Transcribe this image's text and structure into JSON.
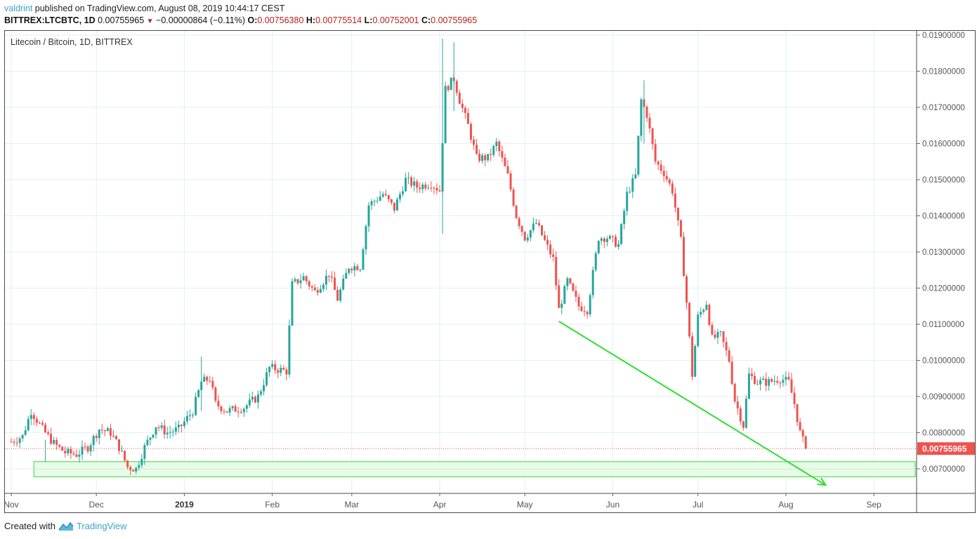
{
  "header": {
    "author": "valdrint",
    "published_text": " published on TradingView.com, August 08, 2019 10:44:17 CEST",
    "symbol": "BITTREX:LTCBTC, 1D",
    "last": "0.00755965",
    "change_icon": "down-triangle-icon",
    "change": "−0.00000864 (−0.11%)",
    "o_label": "O:",
    "o": "0.00756380",
    "h_label": "H:",
    "h": "0.00775514",
    "l_label": "L:",
    "l": "0.00752001",
    "c_label": "C:",
    "c": "0.00755965"
  },
  "legend": {
    "title": "Litecoin / Bitcoin, 1D, BITTREX"
  },
  "footer": {
    "created_with": "Created with",
    "brand": "TradingView",
    "brand_icon": "tradingview-logo-icon"
  },
  "colors": {
    "up": "#26a69a",
    "down": "#ef5350",
    "drawing": "#33dd33",
    "zone_fill": "#e8fbe8",
    "price_label_bg": "#ef5350",
    "grid": "#e6eef3"
  },
  "chart_data": {
    "type": "candlestick",
    "title": "Litecoin / Bitcoin, 1D, BITTREX",
    "xlabel": "",
    "ylabel": "",
    "x_ticks": [
      "Nov",
      "Dec",
      "2019",
      "Feb",
      "Mar",
      "Apr",
      "May",
      "Jun",
      "Jul",
      "Aug",
      "Sep"
    ],
    "y_ticks": [
      "0.01900000",
      "0.01800000",
      "0.01700000",
      "0.01600000",
      "0.01500000",
      "0.01400000",
      "0.01300000",
      "0.01200000",
      "0.01100000",
      "0.01000000",
      "0.00900000",
      "0.00800000",
      "0.00700000"
    ],
    "ylim": [
      0.0064,
      0.0192
    ],
    "last_price": 0.00755965,
    "last_price_label": "0.00755965",
    "grid": true,
    "annotations": [
      {
        "type": "support_zone",
        "price_top": 0.0072,
        "price_bottom": 0.00678,
        "from": "2018-11-09",
        "to": "end"
      },
      {
        "type": "arrow",
        "from_date": "2019-05-13",
        "from_price": 0.01108,
        "to_date": "2019-08-15",
        "to_price": 0.00655
      }
    ],
    "series_close_approx": [
      {
        "date": "2018-11-01",
        "close": 0.00775
      },
      {
        "date": "2018-11-05",
        "close": 0.0079
      },
      {
        "date": "2018-11-08",
        "close": 0.0086
      },
      {
        "date": "2018-11-12",
        "close": 0.0081
      },
      {
        "date": "2018-11-16",
        "close": 0.0077
      },
      {
        "date": "2018-11-20",
        "close": 0.00745
      },
      {
        "date": "2018-11-24",
        "close": 0.0074
      },
      {
        "date": "2018-11-28",
        "close": 0.0076
      },
      {
        "date": "2018-12-02",
        "close": 0.0081
      },
      {
        "date": "2018-12-06",
        "close": 0.008
      },
      {
        "date": "2018-12-09",
        "close": 0.0076
      },
      {
        "date": "2018-12-12",
        "close": 0.00705
      },
      {
        "date": "2018-12-15",
        "close": 0.007
      },
      {
        "date": "2018-12-18",
        "close": 0.0076
      },
      {
        "date": "2018-12-22",
        "close": 0.0082
      },
      {
        "date": "2018-12-26",
        "close": 0.008
      },
      {
        "date": "2018-12-30",
        "close": 0.0081
      },
      {
        "date": "2019-01-04",
        "close": 0.0086
      },
      {
        "date": "2019-01-07",
        "close": 0.0094
      },
      {
        "date": "2019-01-10",
        "close": 0.0095
      },
      {
        "date": "2019-01-12",
        "close": 0.0088
      },
      {
        "date": "2019-01-16",
        "close": 0.0086
      },
      {
        "date": "2019-01-22",
        "close": 0.0087
      },
      {
        "date": "2019-01-27",
        "close": 0.009
      },
      {
        "date": "2019-01-31",
        "close": 0.0098
      },
      {
        "date": "2019-02-06",
        "close": 0.0097
      },
      {
        "date": "2019-02-08",
        "close": 0.0121
      },
      {
        "date": "2019-02-12",
        "close": 0.0123
      },
      {
        "date": "2019-02-16",
        "close": 0.0119
      },
      {
        "date": "2019-02-21",
        "close": 0.0124
      },
      {
        "date": "2019-02-24",
        "close": 0.0117
      },
      {
        "date": "2019-02-28",
        "close": 0.0126
      },
      {
        "date": "2019-03-04",
        "close": 0.0126
      },
      {
        "date": "2019-03-07",
        "close": 0.0143
      },
      {
        "date": "2019-03-12",
        "close": 0.0146
      },
      {
        "date": "2019-03-16",
        "close": 0.0142
      },
      {
        "date": "2019-03-20",
        "close": 0.015
      },
      {
        "date": "2019-03-24",
        "close": 0.0148
      },
      {
        "date": "2019-03-29",
        "close": 0.0149
      },
      {
        "date": "2019-04-01",
        "close": 0.0147
      },
      {
        "date": "2019-04-03",
        "close": 0.0175
      },
      {
        "date": "2019-04-06",
        "close": 0.0178
      },
      {
        "date": "2019-04-08",
        "close": 0.0172
      },
      {
        "date": "2019-04-11",
        "close": 0.0165
      },
      {
        "date": "2019-04-14",
        "close": 0.0156
      },
      {
        "date": "2019-04-18",
        "close": 0.0156
      },
      {
        "date": "2019-04-21",
        "close": 0.016
      },
      {
        "date": "2019-04-25",
        "close": 0.0151
      },
      {
        "date": "2019-04-28",
        "close": 0.014
      },
      {
        "date": "2019-05-01",
        "close": 0.0134
      },
      {
        "date": "2019-05-05",
        "close": 0.0138
      },
      {
        "date": "2019-05-08",
        "close": 0.0133
      },
      {
        "date": "2019-05-11",
        "close": 0.0128
      },
      {
        "date": "2019-05-13",
        "close": 0.0114
      },
      {
        "date": "2019-05-16",
        "close": 0.0122
      },
      {
        "date": "2019-05-20",
        "close": 0.0115
      },
      {
        "date": "2019-05-23",
        "close": 0.0114
      },
      {
        "date": "2019-05-27",
        "close": 0.0134
      },
      {
        "date": "2019-05-30",
        "close": 0.0134
      },
      {
        "date": "2019-06-03",
        "close": 0.0132
      },
      {
        "date": "2019-06-06",
        "close": 0.0146
      },
      {
        "date": "2019-06-09",
        "close": 0.0151
      },
      {
        "date": "2019-06-11",
        "close": 0.0172
      },
      {
        "date": "2019-06-13",
        "close": 0.0168
      },
      {
        "date": "2019-06-16",
        "close": 0.0155
      },
      {
        "date": "2019-06-19",
        "close": 0.0152
      },
      {
        "date": "2019-06-22",
        "close": 0.0147
      },
      {
        "date": "2019-06-25",
        "close": 0.0133
      },
      {
        "date": "2019-06-27",
        "close": 0.0116
      },
      {
        "date": "2019-06-29",
        "close": 0.0096
      },
      {
        "date": "2019-07-01",
        "close": 0.0112
      },
      {
        "date": "2019-07-04",
        "close": 0.0116
      },
      {
        "date": "2019-07-06",
        "close": 0.0106
      },
      {
        "date": "2019-07-09",
        "close": 0.0107
      },
      {
        "date": "2019-07-12",
        "close": 0.01
      },
      {
        "date": "2019-07-14",
        "close": 0.0089
      },
      {
        "date": "2019-07-17",
        "close": 0.0082
      },
      {
        "date": "2019-07-19",
        "close": 0.0096
      },
      {
        "date": "2019-07-22",
        "close": 0.0094
      },
      {
        "date": "2019-07-26",
        "close": 0.0094
      },
      {
        "date": "2019-07-30",
        "close": 0.0095
      },
      {
        "date": "2019-08-02",
        "close": 0.0094
      },
      {
        "date": "2019-08-04",
        "close": 0.0088
      },
      {
        "date": "2019-08-06",
        "close": 0.008
      },
      {
        "date": "2019-08-08",
        "close": 0.00756
      }
    ]
  }
}
